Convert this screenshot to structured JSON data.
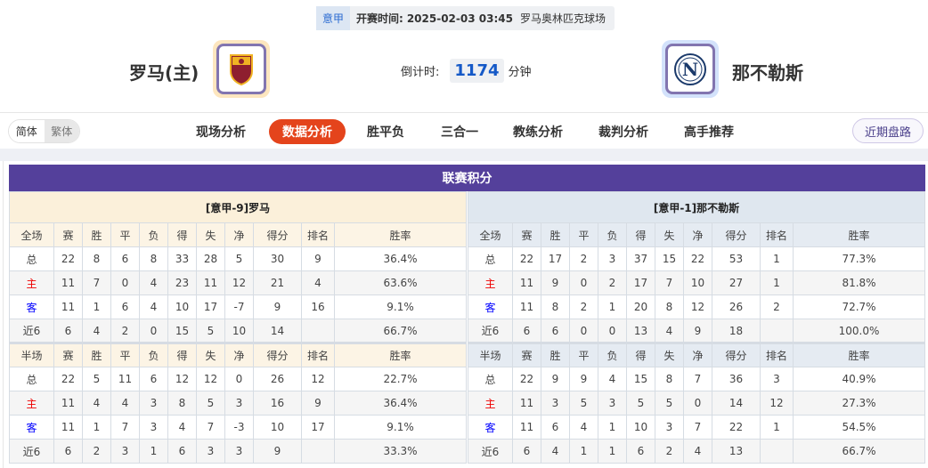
{
  "match": {
    "league": "意甲",
    "time_label": "开赛时间:",
    "time": "2025-02-03 03:45",
    "venue": "罗马奥林匹克球场"
  },
  "home_team": {
    "name": "罗马(主)",
    "logo": "AS Roma crest"
  },
  "away_team": {
    "name": "那不勒斯",
    "logo": "N"
  },
  "countdown": {
    "label": "倒计时:",
    "value": "1174",
    "unit": "分钟"
  },
  "lang": {
    "simplified": "简体",
    "traditional": "繁体"
  },
  "tabs": [
    {
      "label": "现场分析"
    },
    {
      "label": "数据分析",
      "active": true
    },
    {
      "label": "胜平负"
    },
    {
      "label": "三合一"
    },
    {
      "label": "教练分析"
    },
    {
      "label": "裁判分析"
    },
    {
      "label": "高手推荐"
    }
  ],
  "recent_button": "近期盘路",
  "colors": {
    "accent": "#e4441c",
    "title_bar": "#54409b",
    "home_label": "#ee0000",
    "away_label": "#0000ff"
  },
  "standings": {
    "title": "联赛积分",
    "columns_full": [
      "全场",
      "赛",
      "胜",
      "平",
      "负",
      "得",
      "失",
      "净",
      "得分",
      "排名",
      "胜率"
    ],
    "columns_half": [
      "半场",
      "赛",
      "胜",
      "平",
      "负",
      "得",
      "失",
      "净",
      "得分",
      "排名",
      "胜率"
    ],
    "teams": [
      {
        "header": "[意甲-9]罗马",
        "full": [
          [
            "总",
            "22",
            "8",
            "6",
            "8",
            "33",
            "28",
            "5",
            "30",
            "9",
            "36.4%"
          ],
          [
            "主",
            "11",
            "7",
            "0",
            "4",
            "23",
            "11",
            "12",
            "21",
            "4",
            "63.6%"
          ],
          [
            "客",
            "11",
            "1",
            "6",
            "4",
            "10",
            "17",
            "-7",
            "9",
            "16",
            "9.1%"
          ],
          [
            "近6",
            "6",
            "4",
            "2",
            "0",
            "15",
            "5",
            "10",
            "14",
            "",
            "66.7%"
          ]
        ],
        "half": [
          [
            "总",
            "22",
            "5",
            "11",
            "6",
            "12",
            "12",
            "0",
            "26",
            "12",
            "22.7%"
          ],
          [
            "主",
            "11",
            "4",
            "4",
            "3",
            "8",
            "5",
            "3",
            "16",
            "9",
            "36.4%"
          ],
          [
            "客",
            "11",
            "1",
            "7",
            "3",
            "4",
            "7",
            "-3",
            "10",
            "17",
            "9.1%"
          ],
          [
            "近6",
            "6",
            "2",
            "3",
            "1",
            "6",
            "3",
            "3",
            "9",
            "",
            "33.3%"
          ]
        ]
      },
      {
        "header": "[意甲-1]那不勒斯",
        "full": [
          [
            "总",
            "22",
            "17",
            "2",
            "3",
            "37",
            "15",
            "22",
            "53",
            "1",
            "77.3%"
          ],
          [
            "主",
            "11",
            "9",
            "0",
            "2",
            "17",
            "7",
            "10",
            "27",
            "1",
            "81.8%"
          ],
          [
            "客",
            "11",
            "8",
            "2",
            "1",
            "20",
            "8",
            "12",
            "26",
            "2",
            "72.7%"
          ],
          [
            "近6",
            "6",
            "6",
            "0",
            "0",
            "13",
            "4",
            "9",
            "18",
            "",
            "100.0%"
          ]
        ],
        "half": [
          [
            "总",
            "22",
            "9",
            "9",
            "4",
            "15",
            "8",
            "7",
            "36",
            "3",
            "40.9%"
          ],
          [
            "主",
            "11",
            "3",
            "5",
            "3",
            "5",
            "5",
            "0",
            "14",
            "12",
            "27.3%"
          ],
          [
            "客",
            "11",
            "6",
            "4",
            "1",
            "10",
            "3",
            "7",
            "22",
            "1",
            "54.5%"
          ],
          [
            "近6",
            "6",
            "4",
            "1",
            "1",
            "6",
            "2",
            "4",
            "13",
            "",
            "66.7%"
          ]
        ]
      }
    ]
  }
}
